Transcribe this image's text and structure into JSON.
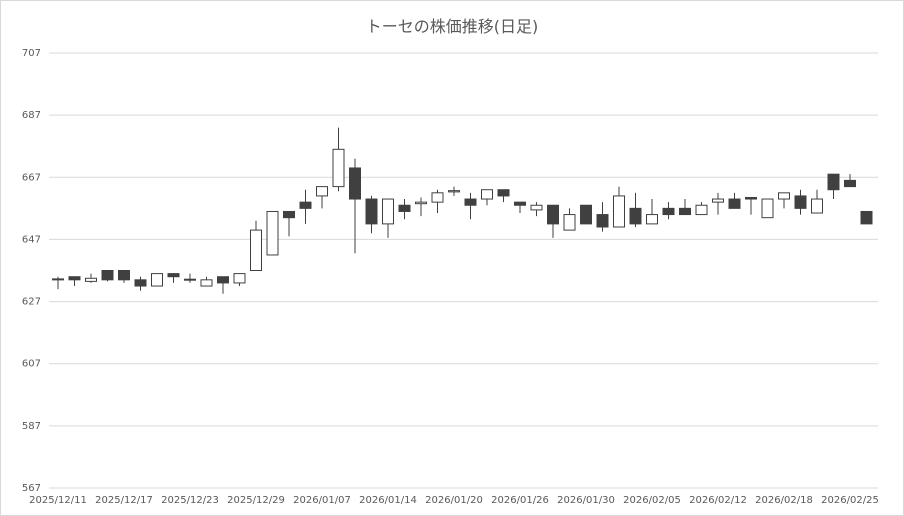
{
  "chart_data": {
    "type": "candlestick",
    "title": "トーセの株価推移(日足)",
    "ylim": [
      567,
      707
    ],
    "y_ticks": [
      567,
      587,
      607,
      627,
      647,
      667,
      687,
      707
    ],
    "grid": true,
    "x_tick_labels": [
      "2025/12/11",
      "2025/12/17",
      "2025/12/23",
      "2025/12/29",
      "2026/01/07",
      "2026/01/14",
      "2026/01/20",
      "2026/01/26",
      "2026/01/30",
      "2026/02/05",
      "2026/02/12",
      "2026/02/18",
      "2026/02/25"
    ],
    "x_tick_every": 4,
    "colors": {
      "up_fill": "#ffffff",
      "down_fill": "#404040",
      "line": "#404040",
      "grid": "#d9d9d9"
    },
    "ohlc": [
      [
        634,
        635,
        631,
        634.3
      ],
      [
        635,
        635,
        632,
        634
      ],
      [
        633.5,
        636,
        633,
        634.5
      ],
      [
        637,
        637,
        633.5,
        634
      ],
      [
        637,
        637,
        633,
        634
      ],
      [
        634,
        635,
        630.5,
        632
      ],
      [
        632,
        636,
        632,
        636
      ],
      [
        636,
        636,
        633,
        635
      ],
      [
        634,
        636,
        633,
        634.2
      ],
      [
        632,
        635,
        632,
        634
      ],
      [
        635,
        635,
        629.5,
        633
      ],
      [
        633,
        636,
        632,
        636
      ],
      [
        637,
        653,
        637,
        650
      ],
      [
        642,
        656,
        642,
        656
      ],
      [
        656,
        656,
        648,
        654
      ],
      [
        659,
        663,
        652,
        657
      ],
      [
        661,
        664,
        657,
        664
      ],
      [
        664,
        683,
        662.5,
        676
      ],
      [
        670,
        673,
        642.5,
        660
      ],
      [
        660,
        661,
        649,
        652
      ],
      [
        652,
        660,
        647.5,
        660
      ],
      [
        658,
        660,
        653.5,
        656
      ],
      [
        658.5,
        660.5,
        654.5,
        659
      ],
      [
        659,
        663,
        655.5,
        662
      ],
      [
        662.3,
        664,
        661,
        662.7
      ],
      [
        660,
        662,
        653.5,
        658
      ],
      [
        660,
        663,
        658,
        663
      ],
      [
        663,
        663,
        659,
        661
      ],
      [
        659,
        659,
        655.5,
        658
      ],
      [
        656.5,
        659,
        654.5,
        658
      ],
      [
        658,
        658,
        647.5,
        652
      ],
      [
        650,
        657,
        650,
        655
      ],
      [
        658,
        658,
        652,
        652
      ],
      [
        655,
        659,
        649.5,
        651
      ],
      [
        651,
        664,
        651,
        661
      ],
      [
        657,
        662,
        651,
        652
      ],
      [
        652,
        660,
        652,
        655
      ],
      [
        657,
        659,
        653.5,
        655
      ],
      [
        657,
        660,
        655,
        655
      ],
      [
        655,
        659,
        655,
        658
      ],
      [
        659,
        662,
        655,
        660
      ],
      [
        660,
        662,
        657,
        657
      ],
      [
        660.5,
        660.5,
        655,
        660
      ],
      [
        654,
        660,
        654,
        660
      ],
      [
        660,
        662,
        657,
        662
      ],
      [
        661,
        663,
        655,
        657
      ],
      [
        655.5,
        663,
        655.5,
        660
      ],
      [
        668,
        668,
        660,
        663
      ],
      [
        666,
        668,
        664,
        664
      ],
      [
        656,
        656,
        652,
        652
      ]
    ]
  }
}
